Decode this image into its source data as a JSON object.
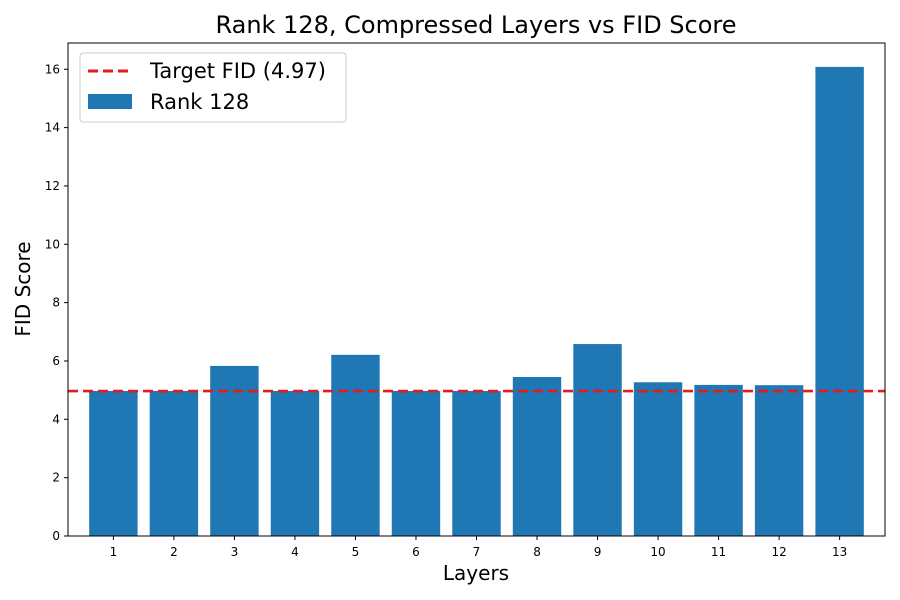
{
  "chart_data": {
    "type": "bar",
    "title": "Rank 128, Compressed Layers vs FID Score",
    "xlabel": "Layers",
    "ylabel": "FID Score",
    "categories": [
      "1",
      "2",
      "3",
      "4",
      "5",
      "6",
      "7",
      "8",
      "9",
      "10",
      "11",
      "12",
      "13"
    ],
    "series": [
      {
        "name": "Rank 128",
        "values": [
          4.97,
          4.97,
          5.83,
          4.97,
          6.21,
          4.97,
          4.97,
          5.45,
          6.58,
          5.27,
          5.18,
          5.17,
          16.08
        ],
        "color": "#1f77b4"
      }
    ],
    "reference_line": {
      "name": "Target FID (4.97)",
      "value": 4.97,
      "color": "#e41a1c",
      "style": "dashed"
    },
    "ylim": [
      0,
      16.9
    ],
    "yticks": [
      0,
      2,
      4,
      6,
      8,
      10,
      12,
      14,
      16
    ],
    "grid": false,
    "legend_position": "top-left"
  }
}
